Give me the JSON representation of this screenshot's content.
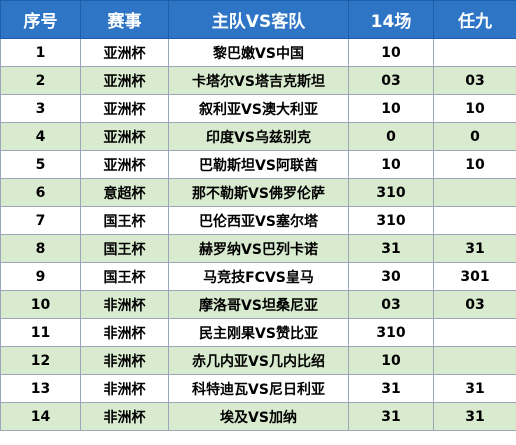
{
  "colors": {
    "header_bg": "#2e75c6",
    "header_text": "#ffffff",
    "row_alt_bg": "#d9ebcf",
    "row_bg": "#ffffff",
    "border": "#9ba7b7"
  },
  "headers": [
    "序号",
    "赛事",
    "主队VS客队",
    "14场",
    "任九"
  ],
  "rows": [
    {
      "no": "1",
      "league": "亚洲杯",
      "match": "黎巴嫩VS中国",
      "p14": "10",
      "r9": ""
    },
    {
      "no": "2",
      "league": "亚洲杯",
      "match": "卡塔尔VS塔吉克斯坦",
      "p14": "03",
      "r9": "03"
    },
    {
      "no": "3",
      "league": "亚洲杯",
      "match": "叙利亚VS澳大利亚",
      "p14": "10",
      "r9": "10"
    },
    {
      "no": "4",
      "league": "亚洲杯",
      "match": "印度VS乌兹别克",
      "p14": "0",
      "r9": "0"
    },
    {
      "no": "5",
      "league": "亚洲杯",
      "match": "巴勒斯坦VS阿联酋",
      "p14": "10",
      "r9": "10"
    },
    {
      "no": "6",
      "league": "意超杯",
      "match": "那不勒斯VS佛罗伦萨",
      "p14": "310",
      "r9": ""
    },
    {
      "no": "7",
      "league": "国王杯",
      "match": "巴伦西亚VS塞尔塔",
      "p14": "310",
      "r9": ""
    },
    {
      "no": "8",
      "league": "国王杯",
      "match": "赫罗纳VS巴列卡诺",
      "p14": "31",
      "r9": "31"
    },
    {
      "no": "9",
      "league": "国王杯",
      "match": "马竞技FCVS皇马",
      "p14": "30",
      "r9": "301"
    },
    {
      "no": "10",
      "league": "非洲杯",
      "match": "摩洛哥VS坦桑尼亚",
      "p14": "03",
      "r9": "03"
    },
    {
      "no": "11",
      "league": "非洲杯",
      "match": "民主刚果VS赞比亚",
      "p14": "310",
      "r9": ""
    },
    {
      "no": "12",
      "league": "非洲杯",
      "match": "赤几内亚VS几内比绍",
      "p14": "10",
      "r9": ""
    },
    {
      "no": "13",
      "league": "非洲杯",
      "match": "科特迪瓦VS尼日利亚",
      "p14": "31",
      "r9": "31"
    },
    {
      "no": "14",
      "league": "非洲杯",
      "match": "埃及VS加纳",
      "p14": "31",
      "r9": "31"
    }
  ]
}
